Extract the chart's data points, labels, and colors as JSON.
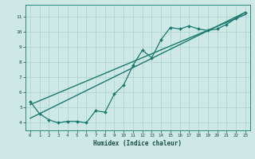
{
  "title": "",
  "xlabel": "Humidex (Indice chaleur)",
  "ylabel": "",
  "bg_color": "#cde8e5",
  "grid_color": "#b0d5d2",
  "line_color": "#1a7a6e",
  "xlim": [
    -0.5,
    23.5
  ],
  "ylim": [
    3.5,
    11.8
  ],
  "xticks": [
    0,
    1,
    2,
    3,
    4,
    5,
    6,
    7,
    8,
    9,
    10,
    11,
    12,
    13,
    14,
    15,
    16,
    17,
    18,
    19,
    20,
    21,
    22,
    23
  ],
  "yticks": [
    4,
    5,
    6,
    7,
    8,
    9,
    10,
    11
  ],
  "data_x": [
    0,
    1,
    2,
    3,
    4,
    5,
    6,
    7,
    8,
    9,
    10,
    11,
    12,
    13,
    14,
    15,
    16,
    17,
    18,
    19,
    20,
    21,
    22,
    23
  ],
  "data_y": [
    5.4,
    4.6,
    4.2,
    4.0,
    4.1,
    4.1,
    4.0,
    4.8,
    4.7,
    5.9,
    6.5,
    7.8,
    8.8,
    8.3,
    9.5,
    10.3,
    10.2,
    10.4,
    10.2,
    10.1,
    10.2,
    10.5,
    10.9,
    11.3
  ],
  "line1_x": [
    0,
    23
  ],
  "line1_y": [
    4.3,
    11.3
  ],
  "line2_x": [
    0,
    23
  ],
  "line2_y": [
    5.2,
    11.15
  ],
  "figsize": [
    3.2,
    2.0
  ],
  "dpi": 100
}
